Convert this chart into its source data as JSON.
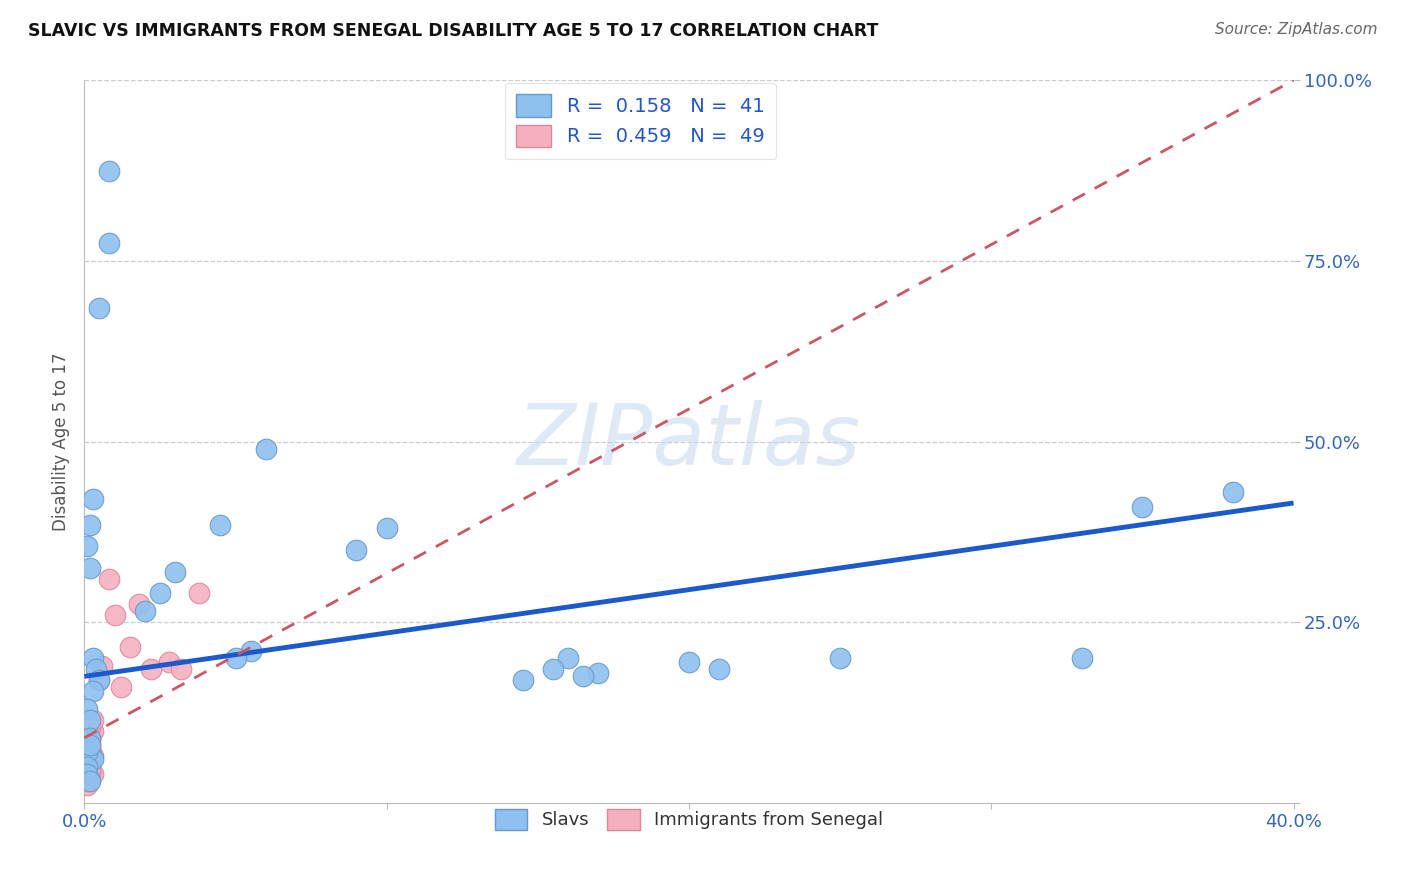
{
  "title": "SLAVIC VS IMMIGRANTS FROM SENEGAL DISABILITY AGE 5 TO 17 CORRELATION CHART",
  "source": "Source: ZipAtlas.com",
  "ylabel": "Disability Age 5 to 17",
  "xlim": [
    0.0,
    0.4
  ],
  "ylim": [
    0.0,
    1.0
  ],
  "slavs_color": "#8ec0f0",
  "slavs_edge_color": "#6699cc",
  "senegal_color": "#f5b0c0",
  "senegal_edge_color": "#dd8899",
  "slavs_line_color": "#1a5acd",
  "senegal_line_color": "#cc5566",
  "R_slavs": 0.158,
  "N_slavs": 41,
  "R_senegal": 0.459,
  "N_senegal": 49,
  "watermark": "ZIPatlas",
  "legend_text_color": "#2255cc",
  "tick_color": "#3366bb",
  "slavs_line_x": [
    0.0,
    0.4
  ],
  "slavs_line_y": [
    0.175,
    0.415
  ],
  "senegal_line_x": [
    0.0,
    0.4
  ],
  "senegal_line_y": [
    0.09,
    1.0
  ],
  "slavs_x": [
    0.008,
    0.008,
    0.005,
    0.003,
    0.002,
    0.001,
    0.002,
    0.003,
    0.004,
    0.005,
    0.003,
    0.001,
    0.002,
    0.001,
    0.003,
    0.002,
    0.001,
    0.002,
    0.06,
    0.045,
    0.1,
    0.09,
    0.03,
    0.025,
    0.02,
    0.055,
    0.05,
    0.16,
    0.155,
    0.17,
    0.165,
    0.145,
    0.2,
    0.21,
    0.25,
    0.35,
    0.33,
    0.38,
    0.001,
    0.001,
    0.002
  ],
  "slavs_y": [
    0.875,
    0.775,
    0.685,
    0.42,
    0.385,
    0.355,
    0.325,
    0.2,
    0.185,
    0.17,
    0.155,
    0.13,
    0.115,
    0.065,
    0.06,
    0.09,
    0.07,
    0.08,
    0.49,
    0.385,
    0.38,
    0.35,
    0.32,
    0.29,
    0.265,
    0.21,
    0.2,
    0.2,
    0.185,
    0.18,
    0.175,
    0.17,
    0.195,
    0.185,
    0.2,
    0.41,
    0.2,
    0.43,
    0.05,
    0.04,
    0.03
  ],
  "senegal_x": [
    0.001,
    0.002,
    0.001,
    0.002,
    0.003,
    0.001,
    0.002,
    0.001,
    0.001,
    0.002,
    0.001,
    0.002,
    0.001,
    0.003,
    0.002,
    0.001,
    0.002,
    0.001,
    0.002,
    0.001,
    0.002,
    0.001,
    0.001,
    0.002,
    0.001,
    0.002,
    0.001,
    0.002,
    0.001,
    0.002,
    0.001,
    0.002,
    0.001,
    0.003,
    0.002,
    0.001,
    0.002,
    0.003,
    0.028,
    0.032,
    0.015,
    0.018,
    0.022,
    0.01,
    0.038,
    0.005,
    0.006,
    0.008,
    0.012
  ],
  "senegal_y": [
    0.05,
    0.045,
    0.04,
    0.07,
    0.065,
    0.035,
    0.08,
    0.03,
    0.025,
    0.055,
    0.06,
    0.075,
    0.045,
    0.04,
    0.05,
    0.065,
    0.07,
    0.055,
    0.06,
    0.035,
    0.04,
    0.045,
    0.03,
    0.05,
    0.06,
    0.065,
    0.07,
    0.045,
    0.055,
    0.075,
    0.08,
    0.09,
    0.095,
    0.1,
    0.085,
    0.11,
    0.105,
    0.115,
    0.195,
    0.185,
    0.215,
    0.275,
    0.185,
    0.26,
    0.29,
    0.17,
    0.19,
    0.31,
    0.16
  ]
}
